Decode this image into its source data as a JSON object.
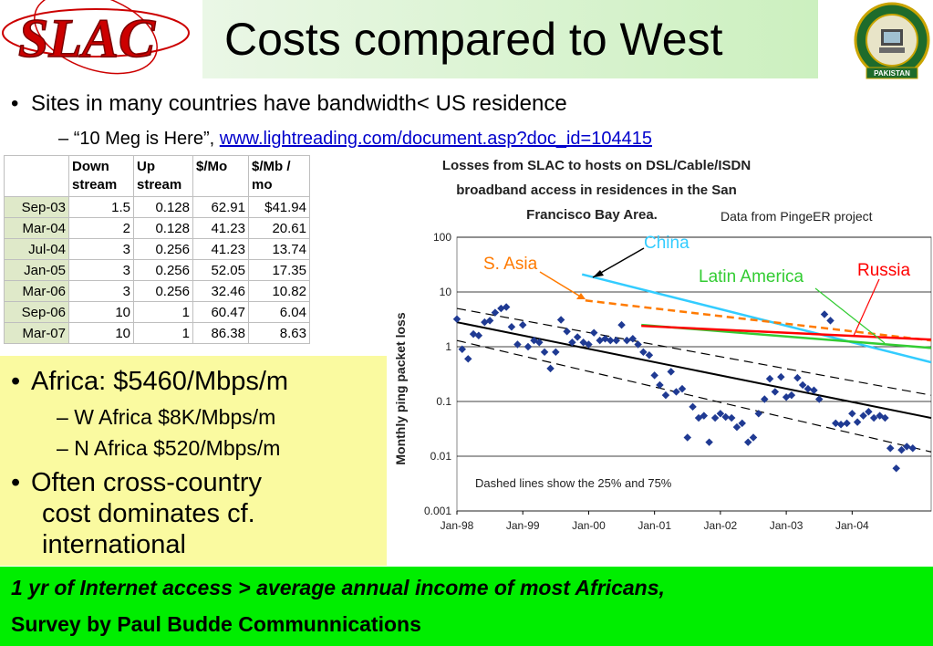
{
  "logo": {
    "text": "SLAC"
  },
  "title": "Costs compared to West",
  "seal": {
    "text": "PAKISTAN"
  },
  "bullet1": "Sites in many countries have bandwidth< US residence",
  "bullet2": {
    "dash": "–",
    "prefix": "“10 Meg is Here”,",
    "link": "www.lightreading.com/document.asp?doc_id=104415"
  },
  "table": {
    "headers": [
      "",
      "Down stream",
      "Up stream",
      "$/Mo",
      "$/Mb / mo"
    ],
    "rows": [
      [
        "Sep-03",
        "1.5",
        "0.128",
        "62.91",
        "$41.94"
      ],
      [
        "Mar-04",
        "2",
        "0.128",
        "41.23",
        "20.61"
      ],
      [
        "Jul-04",
        "3",
        "0.256",
        "41.23",
        "13.74"
      ],
      [
        "Jan-05",
        "3",
        "0.256",
        "52.05",
        "17.35"
      ],
      [
        "Mar-06",
        "3",
        "0.256",
        "32.46",
        "10.82"
      ],
      [
        "Sep-06",
        "10",
        "1",
        "60.47",
        "6.04"
      ],
      [
        "Mar-07",
        "10",
        "1",
        "86.38",
        "8.63"
      ]
    ]
  },
  "africa": {
    "b1": "Africa: $5460/Mbps/m",
    "s1": "W Africa $8K/Mbps/m",
    "s2": "N Africa  $520/Mbps/m",
    "b2a": "Often cross-country",
    "b2b": "cost dominates cf.",
    "b2c": "international"
  },
  "footer": {
    "line1": "1 yr of Internet access > average annual income of most Africans,",
    "line2": "Survey by Paul Budde Communnications"
  },
  "colors": {
    "title_bg": "#ccf0bf",
    "yellow_box": "#fafaa0",
    "footer_bg": "#00ee00",
    "link": "#0000cc",
    "table_date_bg": "#dfe9c9"
  },
  "chart_data": {
    "type": "scatter",
    "title": "Losses from SLAC to hosts on DSL/Cable/ISDN broadband access in residences in the San Francisco Bay Area.",
    "title_lines": [
      "Losses from SLAC to hosts on DSL/Cable/ISDN",
      "broadband access in residences in the San",
      "Francisco Bay Area."
    ],
    "source": "Data from PingeER project",
    "ylabel": "Monthly ping packet loss",
    "xlabel": "",
    "yscale": "log",
    "ylim": [
      0.001,
      100
    ],
    "xlim": [
      1998.0,
      2005.2
    ],
    "y_ticks": [
      "100",
      "10",
      "1",
      "0.1",
      "0.01",
      "0.001"
    ],
    "x_ticks": [
      {
        "v": 1998.0,
        "label": "Jan-98"
      },
      {
        "v": 1999.0,
        "label": "Jan-99"
      },
      {
        "v": 2000.0,
        "label": "Jan-00"
      },
      {
        "v": 2001.0,
        "label": "Jan-01"
      },
      {
        "v": 2002.0,
        "label": "Jan-02"
      },
      {
        "v": 2003.0,
        "label": "Jan-03"
      },
      {
        "v": 2004.0,
        "label": "Jan-04"
      }
    ],
    "annotation": "Dashed lines show the 25% and 75%",
    "points": [
      [
        1998.0,
        3.2
      ],
      [
        1998.08,
        0.9
      ],
      [
        1998.17,
        0.6
      ],
      [
        1998.25,
        1.7
      ],
      [
        1998.33,
        1.6
      ],
      [
        1998.42,
        2.8
      ],
      [
        1998.5,
        3.0
      ],
      [
        1998.58,
        4.2
      ],
      [
        1998.67,
        5.0
      ],
      [
        1998.75,
        5.3
      ],
      [
        1998.83,
        2.3
      ],
      [
        1998.92,
        1.1
      ],
      [
        1999.0,
        2.5
      ],
      [
        1999.08,
        1.0
      ],
      [
        1999.17,
        1.3
      ],
      [
        1999.25,
        1.2
      ],
      [
        1999.33,
        0.8
      ],
      [
        1999.42,
        0.4
      ],
      [
        1999.5,
        0.8
      ],
      [
        1999.58,
        3.1
      ],
      [
        1999.67,
        1.9
      ],
      [
        1999.75,
        1.2
      ],
      [
        1999.83,
        1.5
      ],
      [
        1999.92,
        1.2
      ],
      [
        2000.0,
        1.1
      ],
      [
        2000.08,
        1.8
      ],
      [
        2000.17,
        1.3
      ],
      [
        2000.25,
        1.4
      ],
      [
        2000.33,
        1.3
      ],
      [
        2000.42,
        1.3
      ],
      [
        2000.5,
        2.5
      ],
      [
        2000.58,
        1.3
      ],
      [
        2000.67,
        1.4
      ],
      [
        2000.75,
        1.1
      ],
      [
        2000.83,
        0.8
      ],
      [
        2000.92,
        0.7
      ],
      [
        2001.0,
        0.3
      ],
      [
        2001.08,
        0.2
      ],
      [
        2001.17,
        0.13
      ],
      [
        2001.25,
        0.35
      ],
      [
        2001.33,
        0.15
      ],
      [
        2001.42,
        0.17
      ],
      [
        2001.5,
        0.022
      ],
      [
        2001.58,
        0.08
      ],
      [
        2001.67,
        0.05
      ],
      [
        2001.75,
        0.055
      ],
      [
        2001.83,
        0.018
      ],
      [
        2001.92,
        0.05
      ],
      [
        2002.0,
        0.06
      ],
      [
        2002.08,
        0.052
      ],
      [
        2002.17,
        0.05
      ],
      [
        2002.25,
        0.034
      ],
      [
        2002.33,
        0.04
      ],
      [
        2002.42,
        0.018
      ],
      [
        2002.5,
        0.022
      ],
      [
        2002.58,
        0.06
      ],
      [
        2002.67,
        0.11
      ],
      [
        2002.75,
        0.26
      ],
      [
        2002.83,
        0.15
      ],
      [
        2002.92,
        0.28
      ],
      [
        2003.0,
        0.12
      ],
      [
        2003.08,
        0.13
      ],
      [
        2003.17,
        0.27
      ],
      [
        2003.25,
        0.2
      ],
      [
        2003.33,
        0.17
      ],
      [
        2003.42,
        0.16
      ],
      [
        2003.5,
        0.11
      ],
      [
        2003.58,
        3.9
      ],
      [
        2003.67,
        3.0
      ],
      [
        2003.75,
        0.04
      ],
      [
        2003.83,
        0.038
      ],
      [
        2003.92,
        0.04
      ],
      [
        2004.0,
        0.06
      ],
      [
        2004.08,
        0.042
      ],
      [
        2004.17,
        0.055
      ],
      [
        2004.25,
        0.065
      ],
      [
        2004.33,
        0.05
      ],
      [
        2004.42,
        0.055
      ],
      [
        2004.5,
        0.05
      ],
      [
        2004.58,
        0.014
      ],
      [
        2004.67,
        0.006
      ],
      [
        2004.75,
        0.013
      ],
      [
        2004.83,
        0.015
      ],
      [
        2004.92,
        0.014
      ]
    ],
    "series": [
      {
        "name": "China",
        "color": "#33ccff",
        "dash": false,
        "x": [
          1999.9,
          2005.2
        ],
        "y": [
          21,
          0.52
        ]
      },
      {
        "name": "S. Asia",
        "color": "#ff7a00",
        "dash": true,
        "x": [
          1999.95,
          2005.2
        ],
        "y": [
          7.0,
          1.3
        ]
      },
      {
        "name": "Latin America",
        "color": "#33cc33",
        "dash": false,
        "x": [
          2000.8,
          2005.2
        ],
        "y": [
          2.5,
          0.95
        ]
      },
      {
        "name": "Russia",
        "color": "#ff0000",
        "dash": false,
        "x": [
          2000.8,
          2005.2
        ],
        "y": [
          2.4,
          1.35
        ]
      },
      {
        "name": "",
        "color": "#000000",
        "dash": false,
        "x": [
          1998.0,
          2005.2
        ],
        "y": [
          2.8,
          0.05
        ]
      },
      {
        "name": "",
        "color": "#000000",
        "dash": true,
        "x": [
          1998.0,
          2005.2
        ],
        "y": [
          5.0,
          0.13
        ]
      },
      {
        "name": "",
        "color": "#000000",
        "dash": true,
        "x": [
          1998.0,
          2005.2
        ],
        "y": [
          1.3,
          0.012
        ]
      }
    ]
  }
}
